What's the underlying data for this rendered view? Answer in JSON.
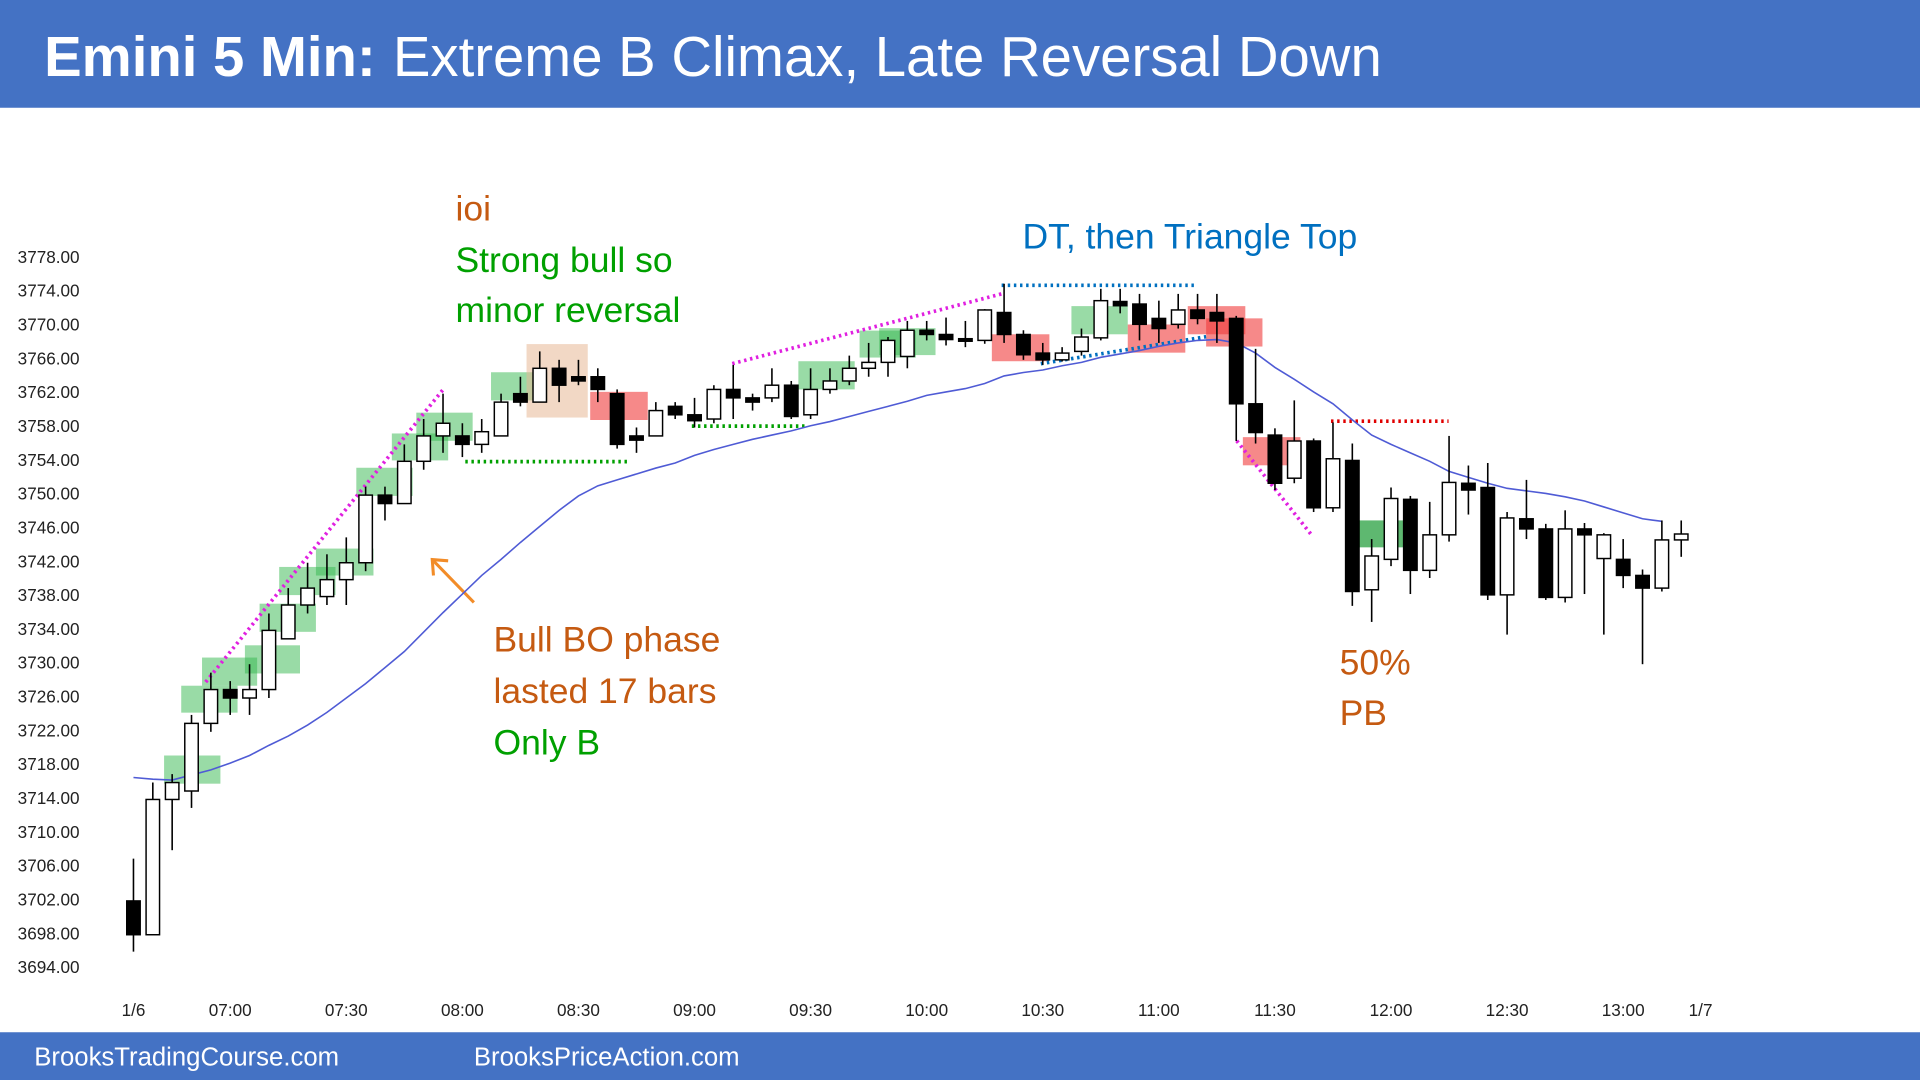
{
  "chart_data": {
    "type": "candlestick",
    "title_prefix": "Emini 5 Min:",
    "title": "Extreme B Climax, Late Reversal Down",
    "footer": [
      "BrooksTradingCourse.com",
      "BrooksPriceAction.com"
    ],
    "annotations": [
      {
        "text": "ioi",
        "color": "#c55a11"
      },
      {
        "text": "Strong bull so",
        "color": "#00a000"
      },
      {
        "text": "minor reversal",
        "color": "#00a000"
      },
      {
        "text": "DT, then Triangle Top",
        "color": "#0070c0"
      },
      {
        "text": "Bull BO phase",
        "color": "#c55a11"
      },
      {
        "text": "lasted 17 bars",
        "color": "#c55a11"
      },
      {
        "text": "Only B",
        "color": "#00a000"
      },
      {
        "text": "50%",
        "color": "#c55a11"
      },
      {
        "text": "PB",
        "color": "#c55a11"
      }
    ],
    "open": [
      3702,
      3698,
      3714,
      3715,
      3723,
      3727,
      3726,
      3727,
      3733,
      3737,
      3738,
      3740,
      3742,
      3750,
      3749,
      3754,
      3757,
      3757,
      3756,
      3757,
      3762,
      3761,
      3765,
      3764,
      3764,
      3762,
      3757,
      3757,
      3760.5,
      3759.5,
      3759,
      3762.5,
      3761.5,
      3761.5,
      3763,
      3759.5,
      3762.5,
      3763.5,
      3765,
      3765.7,
      3766.4,
      3769.5,
      3769,
      3768.5,
      3768.3,
      3771.6,
      3769,
      3766.8,
      3766,
      3767,
      3768.6,
      3772.9,
      3772.6,
      3770.9,
      3770.2,
      3771.9,
      3771.6,
      3770.9,
      3760.8,
      3757.1,
      3752,
      3756.4,
      3748.5,
      3754.1,
      3738.8,
      3742.4,
      3749.5,
      3741.1,
      3745.3,
      3751.4,
      3750.9,
      3738.2,
      3747.2,
      3746,
      3737.9,
      3746,
      3742.5,
      3742.4,
      3740.5,
      3739,
      3744.7
    ],
    "high": [
      3707,
      3716,
      3717,
      3724,
      3729,
      3728,
      3730,
      3736,
      3739,
      3742,
      3743,
      3745,
      3751,
      3751,
      3756,
      3759,
      3762,
      3758.5,
      3759,
      3762,
      3764,
      3767,
      3766,
      3766,
      3765,
      3762.5,
      3758,
      3761,
      3761,
      3761.5,
      3763,
      3765.4,
      3762,
      3765,
      3763.5,
      3765,
      3765,
      3766.5,
      3768,
      3768.7,
      3770.6,
      3770.6,
      3771,
      3770.6,
      3772,
      3775,
      3769.5,
      3768,
      3767.5,
      3769.7,
      3774.4,
      3774.4,
      3773.8,
      3773,
      3773.8,
      3773.8,
      3773.8,
      3771.2,
      3767.3,
      3757.9,
      3761.2,
      3756.7,
      3758.6,
      3756.1,
      3744.8,
      3750.9,
      3749.9,
      3749.2,
      3757,
      3753.5,
      3753.8,
      3748,
      3751.8,
      3746.6,
      3748.2,
      3746.7,
      3745.5,
      3744.8,
      3741.2,
      3747,
      3747
    ],
    "low": [
      3696,
      3698,
      3708,
      3713,
      3722,
      3724,
      3724,
      3726,
      3733,
      3736,
      3737,
      3737,
      3741,
      3747,
      3749,
      3753,
      3755,
      3754.5,
      3755,
      3757,
      3760.5,
      3761,
      3761,
      3763,
      3761,
      3755.5,
      3755,
      3757,
      3759,
      3758,
      3758.5,
      3759,
      3760,
      3761,
      3759,
      3759,
      3762,
      3763,
      3764,
      3764,
      3765,
      3768.3,
      3767.7,
      3767.5,
      3767.9,
      3768,
      3766,
      3765.4,
      3765.8,
      3766.5,
      3768.3,
      3771.5,
      3768.3,
      3768,
      3769.7,
      3770.2,
      3768,
      3756.4,
      3756.1,
      3750.6,
      3751.4,
      3748,
      3748,
      3736.9,
      3735,
      3741.6,
      3738.3,
      3740.2,
      3744.5,
      3747.7,
      3737.6,
      3733.5,
      3744.8,
      3737.6,
      3737.3,
      3738.3,
      3733.5,
      3739,
      3730,
      3738.6,
      3742.7
    ],
    "close": [
      3698,
      3714,
      3716,
      3723,
      3727,
      3726,
      3727,
      3734,
      3737,
      3739,
      3740,
      3742,
      3750,
      3749,
      3754,
      3757,
      3758.5,
      3756,
      3757.5,
      3761,
      3761,
      3765,
      3763,
      3763.5,
      3762.5,
      3756,
      3756.5,
      3760,
      3759.5,
      3758.8,
      3762.5,
      3761.5,
      3761,
      3763,
      3759.3,
      3762.5,
      3763.5,
      3765,
      3765.7,
      3768.3,
      3769.5,
      3769,
      3768.4,
      3768.2,
      3771.9,
      3769,
      3766.6,
      3766,
      3766.8,
      3768.7,
      3773,
      3772.4,
      3770.2,
      3769.7,
      3771.9,
      3770.9,
      3770.6,
      3760.8,
      3757.4,
      3751.4,
      3756.4,
      3748.5,
      3754.3,
      3738.6,
      3742.8,
      3749.6,
      3741.1,
      3745.3,
      3751.5,
      3750.6,
      3738.2,
      3747.3,
      3746,
      3737.9,
      3746,
      3745.3,
      3745.3,
      3740.5,
      3739,
      3744.7,
      3745.4
    ],
    "ema": [
      3716.6,
      3716.4,
      3716.3,
      3716.9,
      3717.5,
      3718.3,
      3719.2,
      3720.4,
      3721.5,
      3722.8,
      3724.3,
      3726,
      3727.7,
      3729.6,
      3731.5,
      3733.8,
      3736.1,
      3738.3,
      3740.5,
      3742.4,
      3744.4,
      3746.3,
      3748.2,
      3749.9,
      3751.1,
      3751.8,
      3752.5,
      3753.2,
      3753.8,
      3754.7,
      3755.4,
      3756,
      3756.6,
      3757.1,
      3757.6,
      3758.2,
      3758.7,
      3759.3,
      3759.9,
      3760.5,
      3761.1,
      3761.8,
      3762.2,
      3762.6,
      3763.2,
      3764.1,
      3764.5,
      3764.8,
      3765.3,
      3765.7,
      3766.3,
      3766.7,
      3767.1,
      3767.6,
      3768,
      3768.3,
      3768.4,
      3768,
      3766.8,
      3765.1,
      3763.7,
      3762.2,
      3760.8,
      3758.9,
      3757.1,
      3756,
      3755,
      3754,
      3752.8,
      3752.1,
      3751.4,
      3750.8,
      3750.5,
      3750.2,
      3749.8,
      3749.3,
      3748.6,
      3747.9,
      3747.2,
      3746.9,
      null
    ],
    "ema_color": "#4f5bd5",
    "up_color": "#ffffff",
    "down_color": "#000000",
    "ylim": [
      3690,
      3782
    ],
    "yticks": [
      {
        "value": 3694,
        "label": "3694.00"
      },
      {
        "value": 3698,
        "label": "3698.00"
      },
      {
        "value": 3702,
        "label": "3702.00"
      },
      {
        "value": 3706,
        "label": "3706.00"
      },
      {
        "value": 3710,
        "label": "3710.00"
      },
      {
        "value": 3714,
        "label": "3714.00"
      },
      {
        "value": 3718,
        "label": "3718.00"
      },
      {
        "value": 3722,
        "label": "3722.00"
      },
      {
        "value": 3726,
        "label": "3726.00"
      },
      {
        "value": 3730,
        "label": "3730.00"
      },
      {
        "value": 3734,
        "label": "3734.00"
      },
      {
        "value": 3738,
        "label": "3738.00"
      },
      {
        "value": 3742,
        "label": "3742.00"
      },
      {
        "value": 3746,
        "label": "3746.00"
      },
      {
        "value": 3750,
        "label": "3750.00"
      },
      {
        "value": 3754,
        "label": "3754.00"
      },
      {
        "value": 3758,
        "label": "3758.00"
      },
      {
        "value": 3762,
        "label": "3762.00"
      },
      {
        "value": 3766,
        "label": "3766.00"
      },
      {
        "value": 3770,
        "label": "3770.00"
      },
      {
        "value": 3774,
        "label": "3774.00"
      },
      {
        "value": 3778,
        "label": "3778.00"
      }
    ],
    "xlim": [
      -1,
      82
    ],
    "xticks": [
      {
        "value": 0,
        "label": "1/6"
      },
      {
        "value": 5,
        "label": "07:00"
      },
      {
        "value": 11,
        "label": "07:30"
      },
      {
        "value": 17,
        "label": "08:00"
      },
      {
        "value": 23,
        "label": "08:30"
      },
      {
        "value": 29,
        "label": "09:00"
      },
      {
        "value": 35,
        "label": "09:30"
      },
      {
        "value": 41,
        "label": "10:00"
      },
      {
        "value": 47,
        "label": "10:30"
      },
      {
        "value": 53,
        "label": "11:00"
      },
      {
        "value": 59,
        "label": "11:30"
      },
      {
        "value": 65,
        "label": "12:00"
      },
      {
        "value": 71,
        "label": "12:30"
      },
      {
        "value": 77,
        "label": "13:00"
      },
      {
        "value": 81,
        "label": "1/7"
      }
    ],
    "grid": false
  }
}
